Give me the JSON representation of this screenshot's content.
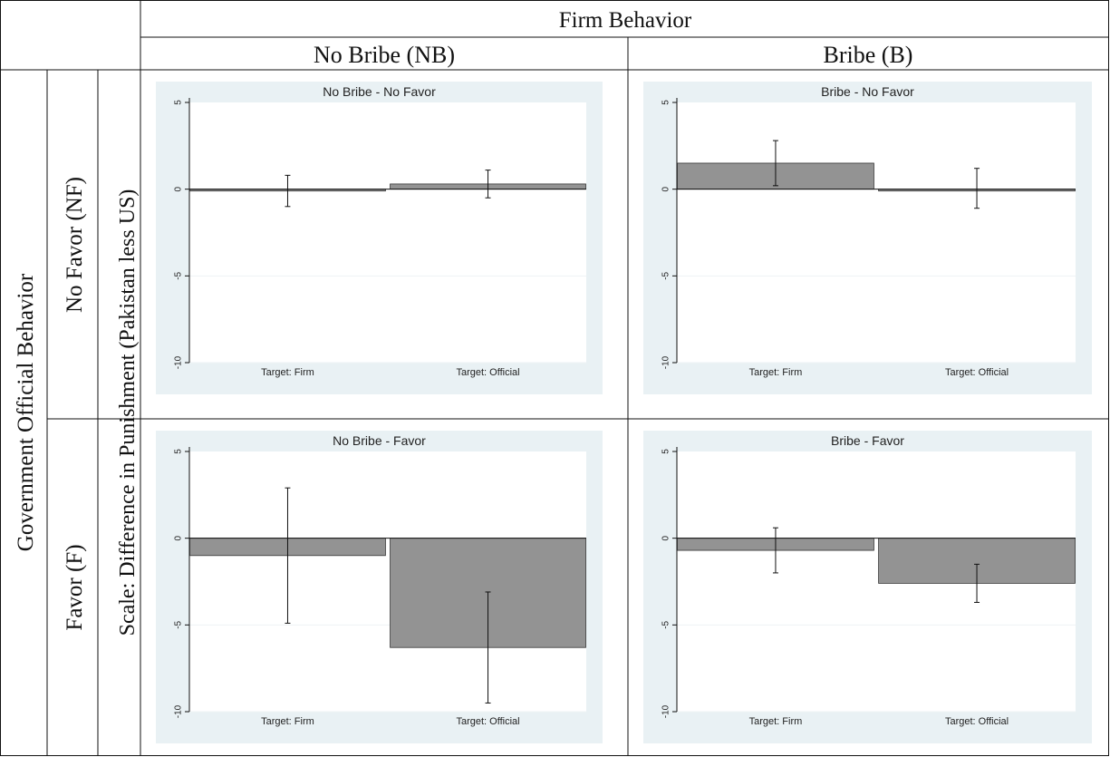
{
  "header": {
    "column_group": "Firm Behavior",
    "columns": [
      "No Bribe (NB)",
      "Bribe (B)"
    ],
    "row_group": "Government Official Behavior",
    "rows": [
      "No Favor (NF)",
      "Favor (F)"
    ],
    "scale_label": "Scale: Difference in Punishment (Pakistan less US)"
  },
  "colors": {
    "panel_bg": "#e9f1f4",
    "plot_bg": "#ffffff",
    "bar": "#939393",
    "bar_edge": "#333333",
    "line": "#111111"
  },
  "chart_data": [
    {
      "type": "bar",
      "title": "No Bribe - No Favor",
      "categories": [
        "Target: Firm",
        "Target: Official"
      ],
      "values": [
        -0.1,
        0.3
      ],
      "ci": [
        [
          -1.0,
          0.8
        ],
        [
          -0.5,
          1.1
        ]
      ],
      "yticks": [
        "5",
        "0",
        "-5",
        "-10"
      ],
      "ylim": [
        -10,
        5
      ]
    },
    {
      "type": "bar",
      "title": "Bribe - No Favor",
      "categories": [
        "Target: Firm",
        "Target: Official"
      ],
      "values": [
        1.5,
        0.0
      ],
      "ci": [
        [
          0.2,
          2.8
        ],
        [
          -1.1,
          1.2
        ]
      ],
      "yticks": [
        "5",
        "0",
        "-5",
        "-10"
      ],
      "ylim": [
        -10,
        5
      ]
    },
    {
      "type": "bar",
      "title": "No Bribe - Favor",
      "categories": [
        "Target: Firm",
        "Target: Official"
      ],
      "values": [
        -1.0,
        -6.3
      ],
      "ci": [
        [
          -4.9,
          2.9
        ],
        [
          -9.5,
          -3.1
        ]
      ],
      "yticks": [
        "5",
        "0",
        "-5",
        "-10"
      ],
      "ylim": [
        -10,
        5
      ]
    },
    {
      "type": "bar",
      "title": "Bribe - Favor",
      "categories": [
        "Target: Firm",
        "Target: Official"
      ],
      "values": [
        -0.7,
        -2.6
      ],
      "ci": [
        [
          -2.0,
          0.6
        ],
        [
          -3.7,
          -1.5
        ]
      ],
      "yticks": [
        "5",
        "0",
        "-5",
        "-10"
      ],
      "ylim": [
        -10,
        5
      ]
    }
  ]
}
